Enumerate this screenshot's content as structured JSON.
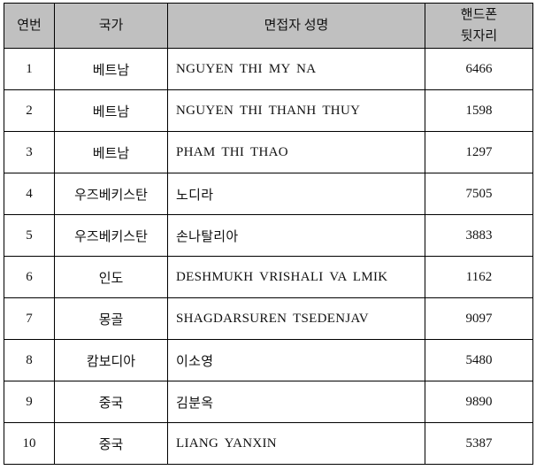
{
  "headers": {
    "no": "연번",
    "country": "국가",
    "name": "면접자 성명",
    "phone_line1": "핸드폰",
    "phone_line2": "뒷자리"
  },
  "rows": [
    {
      "no": "1",
      "country": "베트남",
      "name": "NGUYEN THI MY NA",
      "phone": "6466"
    },
    {
      "no": "2",
      "country": "베트남",
      "name": "NGUYEN THI THANH THUY",
      "phone": "1598"
    },
    {
      "no": "3",
      "country": "베트남",
      "name": "PHAM THI THAO",
      "phone": "1297"
    },
    {
      "no": "4",
      "country": "우즈베키스탄",
      "name": "노디라",
      "phone": "7505"
    },
    {
      "no": "5",
      "country": "우즈베키스탄",
      "name": "손나탈리아",
      "phone": "3883"
    },
    {
      "no": "6",
      "country": "인도",
      "name": "DESHMUKH VRISHALI VA LMIK",
      "phone": "1162"
    },
    {
      "no": "7",
      "country": "몽골",
      "name": "SHAGDARSUREN TSEDENJAV",
      "phone": "9097"
    },
    {
      "no": "8",
      "country": "캄보디아",
      "name": "이소영",
      "phone": "5480"
    },
    {
      "no": "9",
      "country": "중국",
      "name": "김분옥",
      "phone": "9890"
    },
    {
      "no": "10",
      "country": "중국",
      "name": "LIANG YANXIN",
      "phone": "5387"
    }
  ],
  "colors": {
    "header_bg": "#c0c0c0",
    "border": "#000000"
  }
}
